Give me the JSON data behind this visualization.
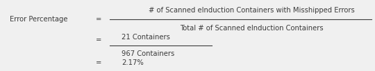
{
  "label_left": "Error Percentage",
  "eq1": "=",
  "eq2": "=",
  "eq3": "=",
  "numerator1": "# of Scanned eInduction Containers with Misshipped Errors",
  "denominator1": "Total # of Scanned eInduction Containers",
  "numerator2": "21 Containers",
  "denominator2": "967 Containers",
  "result": "2.17%",
  "font_size": 7.2,
  "text_color": "#3a3a3a",
  "bg_color": "#f0f0f0",
  "line_color": "#3a3a3a",
  "fig_width": 5.4,
  "fig_height": 1.03,
  "dpi": 100
}
